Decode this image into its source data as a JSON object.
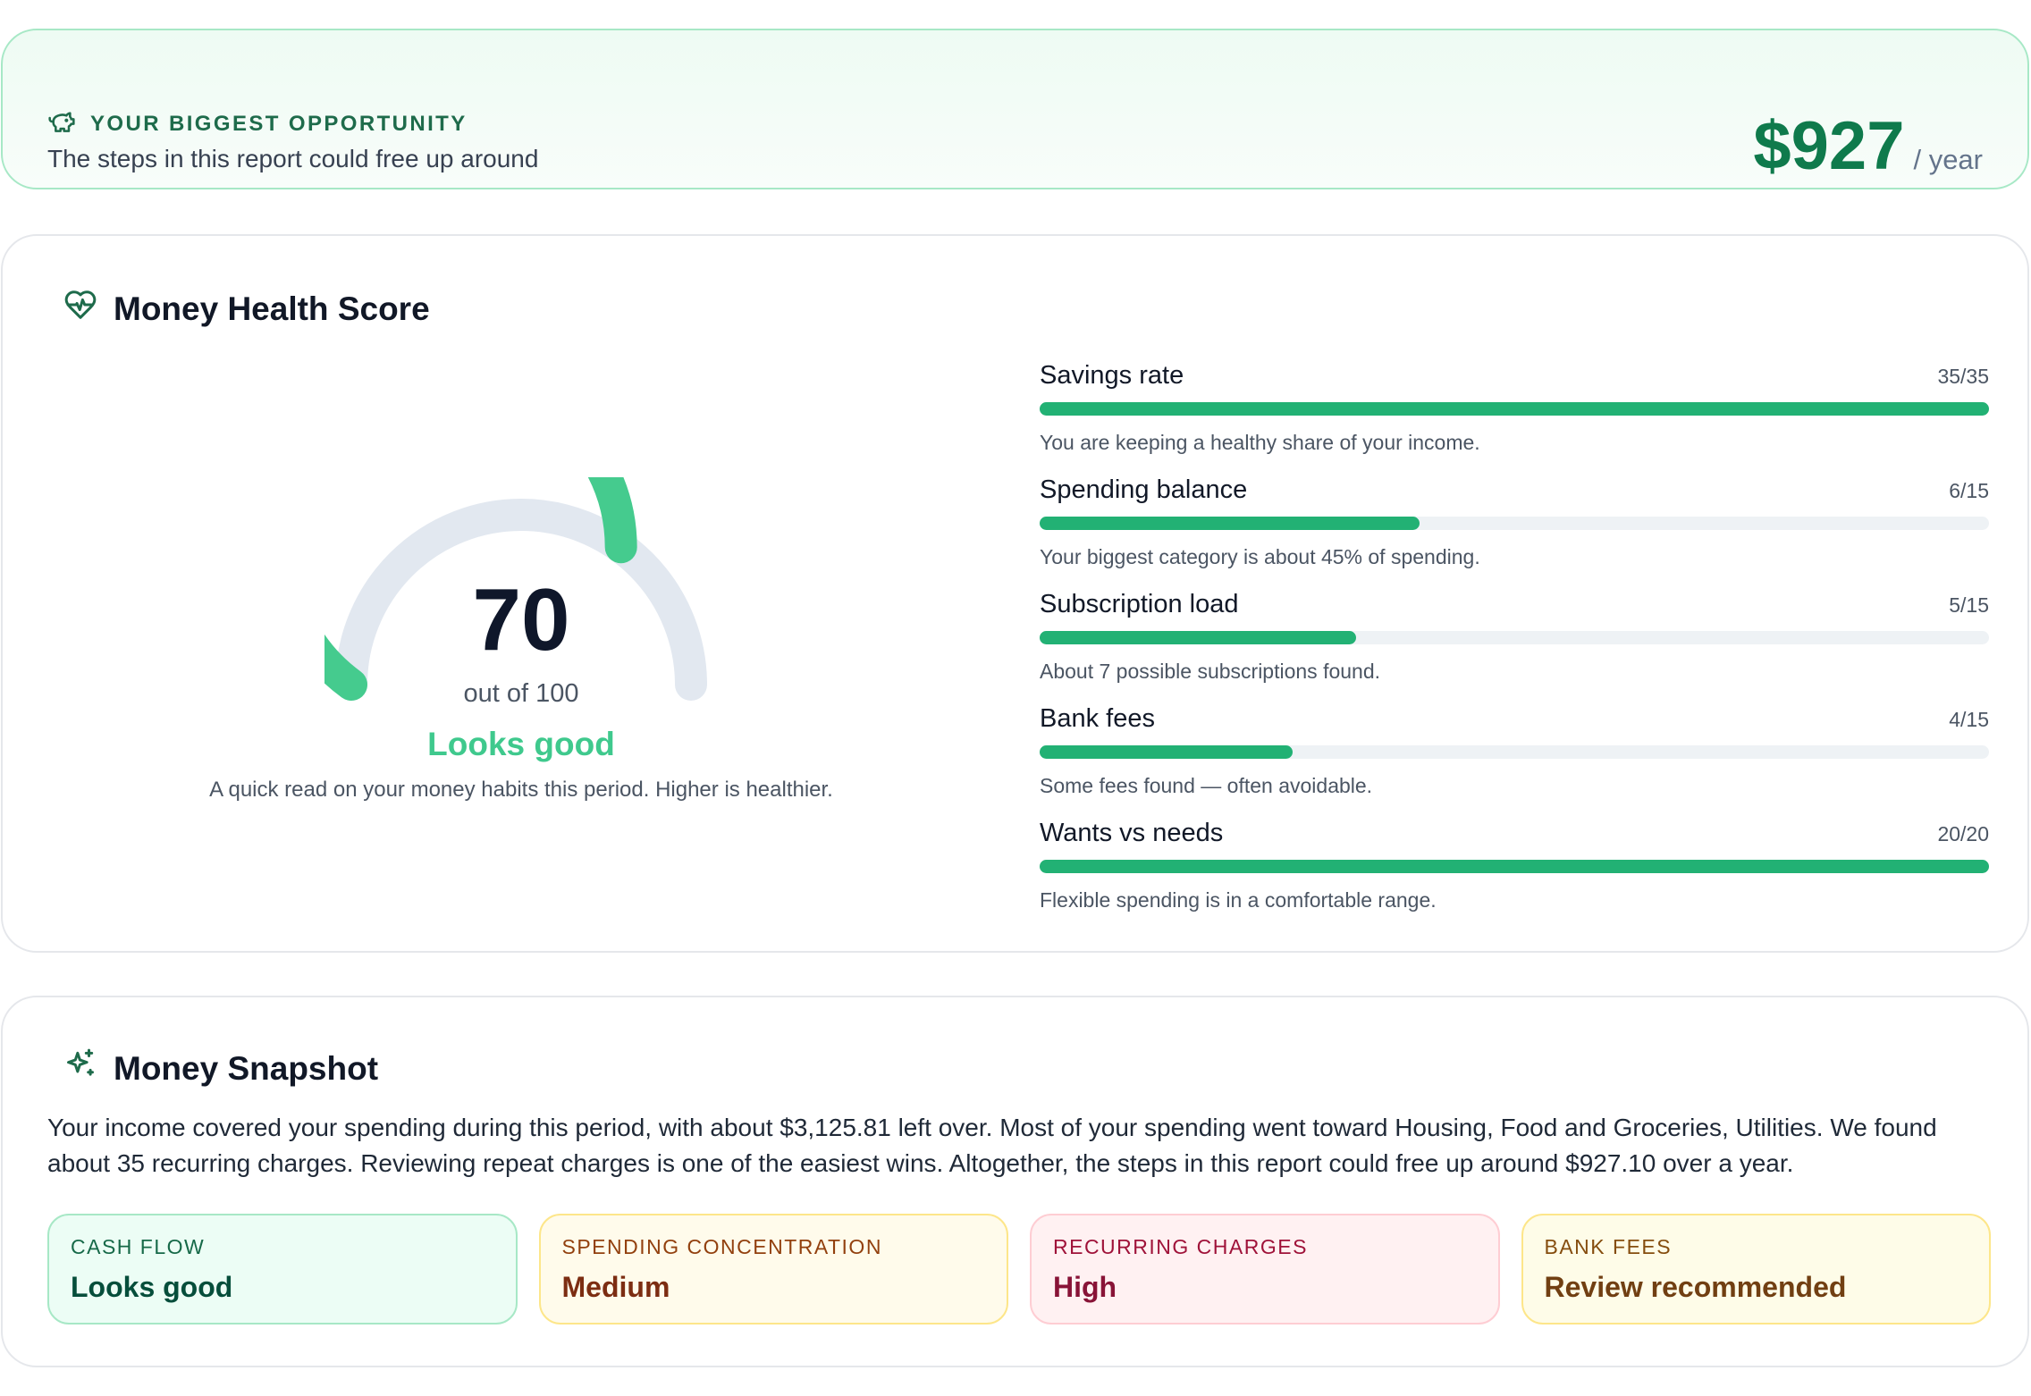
{
  "opportunity": {
    "label": "YOUR BIGGEST OPPORTUNITY",
    "text": "The steps in this report could free up around",
    "amount": "$927",
    "unit": "/ year",
    "icon": "piggy-bank-icon"
  },
  "health": {
    "title": "Money Health Score",
    "icon": "heart-pulse-icon",
    "score": "70",
    "score_value": 70,
    "max": 100,
    "out_of": "out of 100",
    "verdict": "Looks good",
    "note": "A quick read on your money habits this period. Higher is healthier.",
    "colors": {
      "gauge_fill": "#45cb8e",
      "gauge_track": "#e2e8f0",
      "bar_fill": "#22b174"
    },
    "metrics": [
      {
        "name": "Savings rate",
        "score": "35/35",
        "value": 35,
        "max": 35,
        "note": "You are keeping a healthy share of your income."
      },
      {
        "name": "Spending balance",
        "score": "6/15",
        "value": 6,
        "max": 15,
        "note": "Your biggest category is about 45% of spending."
      },
      {
        "name": "Subscription load",
        "score": "5/15",
        "value": 5,
        "max": 15,
        "note": "About 7 possible subscriptions found."
      },
      {
        "name": "Bank fees",
        "score": "4/15",
        "value": 4,
        "max": 15,
        "note": "Some fees found — often avoidable."
      },
      {
        "name": "Wants vs needs",
        "score": "20/20",
        "value": 20,
        "max": 20,
        "note": "Flexible spending is in a comfortable range."
      }
    ]
  },
  "snapshot": {
    "title": "Money Snapshot",
    "icon": "sparkle-icon",
    "summary": "Your income covered your spending during this period, with about $3,125.81 left over. Most of your spending went toward Housing, Food and Groceries, Utilities. We found about 35 recurring charges. Reviewing repeat charges is one of the easiest wins. Altogether, the steps in this report could free up around $927.10 over a year.",
    "tiles": [
      {
        "label": "CASH FLOW",
        "value": "Looks good"
      },
      {
        "label": "SPENDING CONCENTRATION",
        "value": "Medium"
      },
      {
        "label": "RECURRING CHARGES",
        "value": "High"
      },
      {
        "label": "BANK FEES",
        "value": "Review recommended"
      }
    ]
  }
}
